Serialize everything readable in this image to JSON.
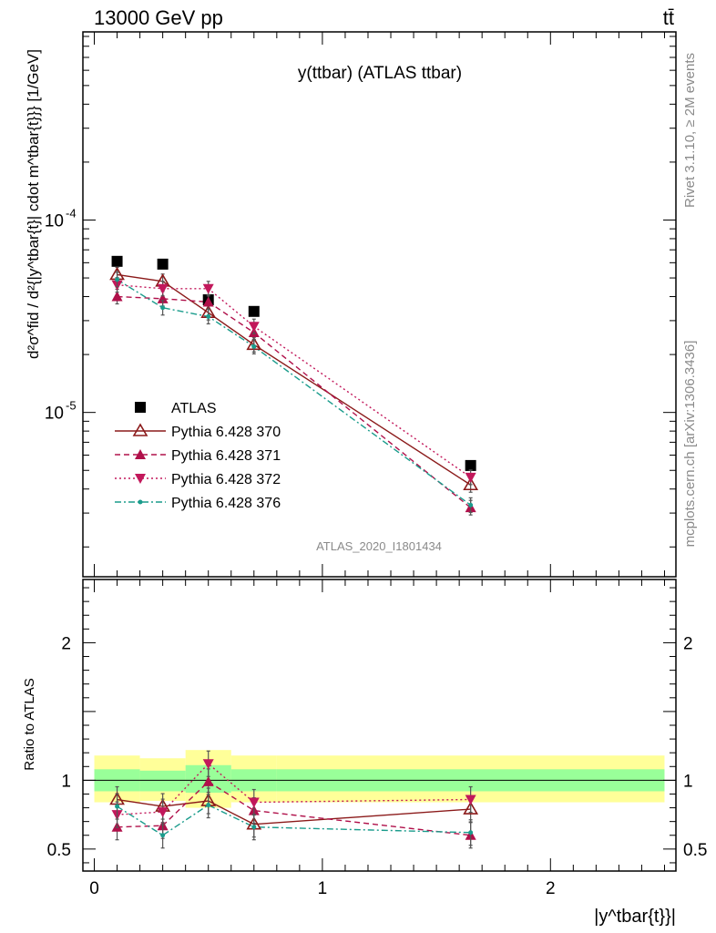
{
  "header": {
    "left": "13000 GeV pp",
    "right": "tt̄"
  },
  "watermarks": {
    "rivet": "Rivet 3.1.10, ≥ 2M events",
    "mcplots": "mcplots.cern.ch [arXiv:1306.3436]",
    "analysis": "ATLAS_2020_I1801434"
  },
  "chart_data": [
    {
      "type": "line",
      "title": "y(ttbar) (ATLAS ttbar)",
      "ylabel": "d²σ^fid / d²{|y^tbar{t}| cdot m^tbar{t}}} [1/GeV]",
      "yscale": "log",
      "ylim": [
        1.4e-06,
        0.00095
      ],
      "xlim": [
        -0.05,
        2.55
      ],
      "y_ticks": [
        {
          "value": 1e-05,
          "label": "10^-5"
        },
        {
          "value": 0.0001,
          "label": "10^-4"
        }
      ],
      "legend_position": "lower-left",
      "x": [
        0.1,
        0.3,
        0.5,
        0.7,
        1.65
      ],
      "series": [
        {
          "name": "ATLAS",
          "color": "#000000",
          "marker": "square",
          "line": "none",
          "values": [
            6.1e-05,
            5.9e-05,
            3.85e-05,
            3.35e-05,
            5.3e-06
          ]
        },
        {
          "name": "Pythia 6.428 370",
          "color": "#8b1a1a",
          "marker": "triangle-up-open",
          "line": "solid",
          "values": [
            5.2e-05,
            4.8e-05,
            3.3e-05,
            2.25e-05,
            4.2e-06
          ]
        },
        {
          "name": "Pythia 6.428 371",
          "color": "#b0104a",
          "marker": "triangle-up",
          "line": "dashed",
          "values": [
            4e-05,
            3.9e-05,
            3.75e-05,
            2.6e-05,
            3.2e-06
          ]
        },
        {
          "name": "Pythia 6.428 372",
          "color": "#c2185b",
          "marker": "triangle-down",
          "line": "dotted",
          "values": [
            4.6e-05,
            4.4e-05,
            4.4e-05,
            2.8e-05,
            4.6e-06
          ]
        },
        {
          "name": "Pythia 6.428 376",
          "color": "#1a9c8c",
          "marker": "dot",
          "line": "dashdot",
          "values": [
            4.9e-05,
            3.5e-05,
            3.15e-05,
            2.2e-05,
            3.3e-06
          ]
        }
      ]
    },
    {
      "type": "line",
      "ylabel": "Ratio to ATLAS",
      "xlabel": "|y^tbar{t}}|",
      "ylim": [
        0.34,
        2.46
      ],
      "xlim": [
        -0.05,
        2.55
      ],
      "x_ticks": [
        0,
        1,
        2
      ],
      "y_ticks": [
        0.5,
        1,
        2
      ],
      "bands": [
        {
          "name": "yellow",
          "color": "#ffff99",
          "bins": [
            [
              0,
              0.2,
              0.84,
              1.18
            ],
            [
              0.2,
              0.4,
              0.85,
              1.16
            ],
            [
              0.4,
              0.6,
              0.8,
              1.22
            ],
            [
              0.6,
              0.8,
              0.84,
              1.18
            ],
            [
              0.8,
              2.5,
              0.84,
              1.18
            ]
          ]
        },
        {
          "name": "green",
          "color": "#99ff99",
          "bins": [
            [
              0,
              0.2,
              0.92,
              1.08
            ],
            [
              0.2,
              0.4,
              0.92,
              1.07
            ],
            [
              0.4,
              0.6,
              0.91,
              1.11
            ],
            [
              0.6,
              0.8,
              0.92,
              1.08
            ],
            [
              0.8,
              2.5,
              0.92,
              1.08
            ]
          ]
        }
      ],
      "x": [
        0.1,
        0.3,
        0.5,
        0.7,
        1.65
      ],
      "series": [
        {
          "name": "Pythia 6.428 370",
          "values": [
            0.86,
            0.81,
            0.85,
            0.68,
            0.79
          ]
        },
        {
          "name": "Pythia 6.428 371",
          "values": [
            0.66,
            0.67,
            0.99,
            0.78,
            0.6
          ]
        },
        {
          "name": "Pythia 6.428 372",
          "values": [
            0.75,
            0.77,
            1.12,
            0.84,
            0.86
          ]
        },
        {
          "name": "Pythia 6.428 376",
          "values": [
            0.81,
            0.6,
            0.82,
            0.66,
            0.62
          ]
        }
      ]
    }
  ]
}
